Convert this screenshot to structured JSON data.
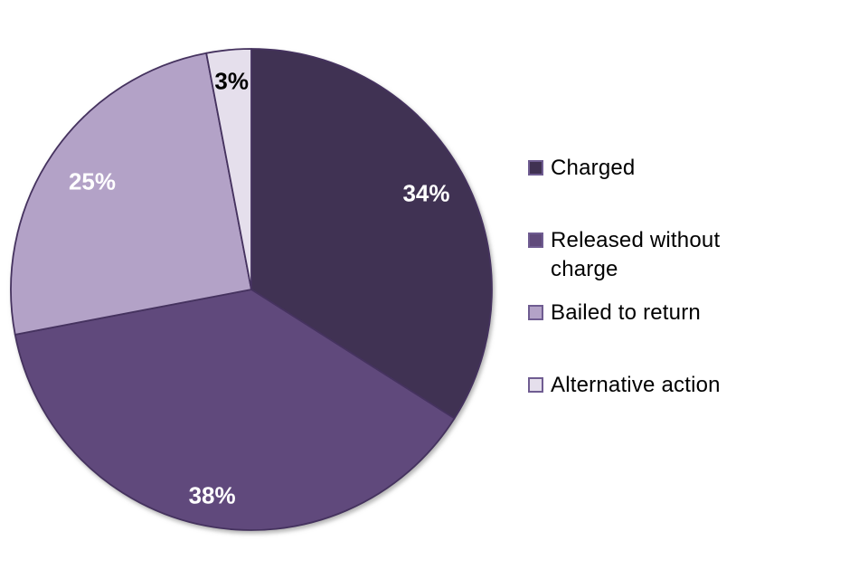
{
  "chart_data": {
    "type": "pie",
    "title": "",
    "slices": [
      {
        "label": "Charged",
        "value": 34,
        "display": "34%",
        "color": "#403152",
        "label_color": "#FFFFFF"
      },
      {
        "label": "Released without charge",
        "value": 38,
        "display": "38%",
        "color": "#604A7B",
        "label_color": "#FFFFFF"
      },
      {
        "label": "Bailed to return",
        "value": 25,
        "display": "25%",
        "color": "#B3A2C7",
        "label_color": "#FFFFFF"
      },
      {
        "label": "Alternative action",
        "value": 3,
        "display": "3%",
        "color": "#E5DFEC",
        "label_color": "#000000"
      }
    ],
    "start_angle_deg": 0,
    "direction": "clockwise",
    "slice_border_color": "#45325E",
    "legend_swatch_border_color": "#6F5C91",
    "background_color": "#FFFFFF",
    "legend_position": "right",
    "label_radius_factors": [
      0.83,
      0.87,
      0.8,
      0.87
    ]
  }
}
